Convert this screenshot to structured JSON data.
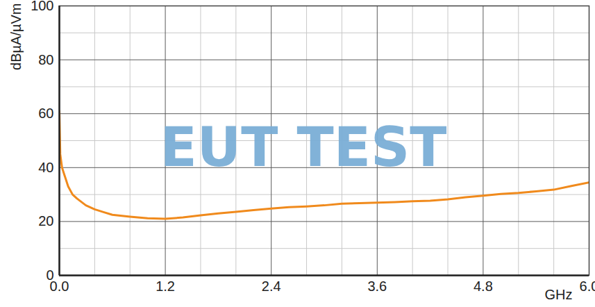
{
  "chart_data": {
    "type": "line",
    "xlabel": "GHz",
    "ylabel": "dBµA/µVm",
    "annotations": [
      "EUT TEST"
    ],
    "x": [
      0,
      0.01,
      0.03,
      0.06,
      0.1,
      0.15,
      0.2,
      0.3,
      0.4,
      0.5,
      0.6,
      0.8,
      1.0,
      1.2,
      1.4,
      1.6,
      1.8,
      2.0,
      2.2,
      2.4,
      2.6,
      2.8,
      3.0,
      3.2,
      3.4,
      3.6,
      3.8,
      4.0,
      4.2,
      4.4,
      4.6,
      4.8,
      5.0,
      5.2,
      5.4,
      5.6,
      5.8,
      6.0
    ],
    "values": [
      61,
      45,
      40,
      37,
      33,
      30,
      28.5,
      26,
      24.5,
      23.5,
      22.5,
      21.8,
      21.2,
      21,
      21.5,
      22.3,
      23,
      23.6,
      24.2,
      24.8,
      25.3,
      25.6,
      26,
      26.6,
      26.8,
      27,
      27.2,
      27.5,
      27.7,
      28.2,
      29,
      29.6,
      30.2,
      30.6,
      31.2,
      31.8,
      33.2,
      34.5
    ],
    "color": "#f08a1c",
    "xlim": [
      0,
      6
    ],
    "xticks": [
      0,
      1.2,
      2.4,
      3.6,
      4.8,
      6
    ],
    "ylim": [
      0,
      100
    ],
    "yticks": [
      0,
      20,
      40,
      60,
      80,
      100
    ],
    "grid": true
  }
}
